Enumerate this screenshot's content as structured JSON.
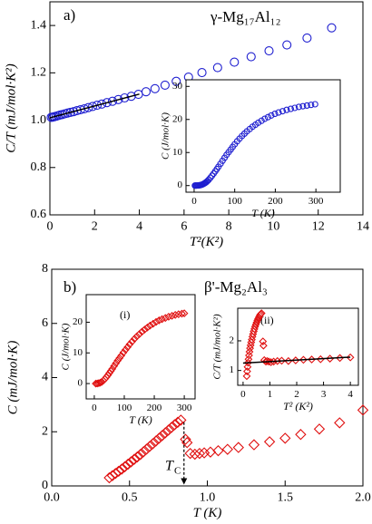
{
  "chart_data": [
    {
      "type": "scatter",
      "label": "a)",
      "title": "γ-Mg₁₇Al₁₂",
      "xlabel": "T²(K²)",
      "ylabel": "C/T (mJ/mol·K²)",
      "xlim": [
        0,
        14
      ],
      "ylim": [
        0.6,
        1.5
      ],
      "xticks": [
        0,
        2,
        4,
        6,
        8,
        10,
        12,
        14
      ],
      "yticks": [
        0.6,
        0.8,
        {
          "value": 1,
          "label": "1.0"
        },
        1.2,
        1.4
      ],
      "series": [
        {
          "color": "#1f1fd0",
          "marker": "circle",
          "x": [
            0.06,
            0.12,
            0.2,
            0.28,
            0.37,
            0.46,
            0.56,
            0.67,
            0.79,
            0.92,
            1.06,
            1.21,
            1.37,
            1.54,
            1.72,
            1.91,
            2.11,
            2.32,
            2.55,
            2.8,
            3.06,
            3.34,
            3.64,
            3.96,
            4.3,
            4.7,
            5.15,
            5.65,
            6.2,
            6.8,
            7.5,
            8.25,
            9.0,
            9.8,
            10.6,
            11.5,
            12.6
          ],
          "values": [
            1.012,
            1.013,
            1.015,
            1.017,
            1.019,
            1.022,
            1.024,
            1.027,
            1.03,
            1.033,
            1.036,
            1.04,
            1.044,
            1.048,
            1.053,
            1.058,
            1.063,
            1.068,
            1.074,
            1.08,
            1.087,
            1.094,
            1.101,
            1.109,
            1.12,
            1.133,
            1.148,
            1.164,
            1.182,
            1.201,
            1.222,
            1.245,
            1.268,
            1.293,
            1.318,
            1.347,
            1.39
          ]
        },
        {
          "color": "#000000",
          "marker": "line",
          "x": [
            0,
            4
          ],
          "values": [
            1.01,
            1.11
          ]
        }
      ]
    },
    {
      "type": "scatter",
      "xlabel": "T (K)",
      "ylabel": "C (J/mol·K)",
      "xlim": [
        -20,
        360
      ],
      "ylim": [
        -2,
        32
      ],
      "xticks": [
        0,
        100,
        200,
        300
      ],
      "yticks": [
        0,
        10,
        20,
        30
      ],
      "series": [
        {
          "color": "#1f1fd0",
          "marker": "circle",
          "x": [
            2,
            4,
            6,
            8,
            10,
            12,
            14,
            16,
            18,
            20,
            22,
            24,
            26,
            28,
            30,
            33,
            36,
            40,
            44,
            48,
            52,
            56,
            60,
            65,
            70,
            75,
            80,
            85,
            90,
            95,
            100,
            106,
            112,
            118,
            124,
            130,
            137,
            144,
            151,
            158,
            166,
            174,
            182,
            190,
            199,
            208,
            218,
            228,
            238,
            248,
            258,
            268,
            278,
            288,
            298
          ],
          "values": [
            0,
            0,
            0.01,
            0.02,
            0.04,
            0.07,
            0.11,
            0.16,
            0.23,
            0.32,
            0.43,
            0.56,
            0.71,
            0.88,
            1.07,
            1.4,
            1.78,
            2.35,
            2.97,
            3.62,
            4.3,
            5.0,
            5.7,
            6.6,
            7.5,
            8.4,
            9.3,
            10.1,
            10.9,
            11.7,
            12.5,
            13.4,
            14.2,
            15.0,
            15.7,
            16.4,
            17.1,
            17.8,
            18.4,
            19.0,
            19.6,
            20.2,
            20.7,
            21.2,
            21.7,
            22.1,
            22.5,
            22.9,
            23.2,
            23.5,
            23.8,
            24.0,
            24.2,
            24.4,
            24.6
          ]
        }
      ]
    },
    {
      "type": "scatter",
      "label": "b)",
      "title": "β'-Mg₂Al₃",
      "xlabel": "T (K)",
      "ylabel": "C (mJ/mol·K)",
      "xlim": [
        0,
        2
      ],
      "ylim": [
        0,
        8
      ],
      "xticks": [
        {
          "value": 0,
          "label": "0.0"
        },
        0.5,
        {
          "value": 1,
          "label": "1.0"
        },
        1.5,
        {
          "value": 2,
          "label": "2.0"
        }
      ],
      "yticks": [
        0,
        2,
        4,
        6,
        8
      ],
      "annotation": [
        "T",
        "C"
      ],
      "arrow": {
        "x": 0.85,
        "y": [
          2.35,
          0.05
        ]
      },
      "series": [
        {
          "color": "#e01010",
          "marker": "diamond",
          "x": [
            0.37,
            0.39,
            0.41,
            0.43,
            0.45,
            0.47,
            0.49,
            0.51,
            0.53,
            0.55,
            0.57,
            0.59,
            0.61,
            0.63,
            0.65,
            0.67,
            0.69,
            0.71,
            0.73,
            0.75,
            0.77,
            0.79,
            0.81,
            0.83,
            0.86,
            0.87,
            0.89,
            0.92,
            0.95,
            0.98,
            1.02,
            1.07,
            1.13,
            1.2,
            1.3,
            1.4,
            1.5,
            1.6,
            1.72,
            1.85,
            2.0
          ],
          "values": [
            0.3,
            0.38,
            0.46,
            0.54,
            0.62,
            0.71,
            0.8,
            0.89,
            0.98,
            1.07,
            1.16,
            1.26,
            1.36,
            1.46,
            1.56,
            1.66,
            1.76,
            1.86,
            1.96,
            2.06,
            2.16,
            2.26,
            2.35,
            2.43,
            1.72,
            1.6,
            1.2,
            1.17,
            1.2,
            1.22,
            1.25,
            1.3,
            1.35,
            1.42,
            1.52,
            1.63,
            1.76,
            1.9,
            2.1,
            2.33,
            2.8
          ]
        }
      ]
    },
    {
      "type": "scatter",
      "label": "(i)",
      "xlabel": "T (K)",
      "ylabel": "C (J/mol·K)",
      "xlim": [
        -27,
        336
      ],
      "ylim": [
        -5,
        29
      ],
      "xticks": [
        0,
        100,
        200,
        300
      ],
      "yticks": [
        0,
        10,
        20
      ],
      "series": [
        {
          "color": "#e01010",
          "marker": "diamond",
          "x": [
            5,
            10,
            15,
            20,
            25,
            30,
            35,
            40,
            45,
            50,
            55,
            60,
            66,
            72,
            78,
            84,
            90,
            97,
            104,
            111,
            118,
            126,
            134,
            142,
            150,
            159,
            168,
            177,
            186,
            196,
            206,
            216,
            226,
            237,
            248,
            259,
            270,
            281,
            292,
            300
          ],
          "values": [
            0,
            0.03,
            0.12,
            0.28,
            0.55,
            0.95,
            1.45,
            2.05,
            2.7,
            3.4,
            4.1,
            4.8,
            5.7,
            6.6,
            7.5,
            8.3,
            9.1,
            10.1,
            11.0,
            11.9,
            12.8,
            13.7,
            14.6,
            15.4,
            16.1,
            16.9,
            17.6,
            18.3,
            18.9,
            19.5,
            20.1,
            20.6,
            21.0,
            21.4,
            21.8,
            22.1,
            22.4,
            22.6,
            22.8,
            22.9
          ]
        }
      ]
    },
    {
      "type": "scatter",
      "label": "(ii)",
      "xlabel": "T² (K²)",
      "ylabel": "C/T (mJ/mol·K²)",
      "xlim": [
        -0.2,
        4.3
      ],
      "ylim": [
        0.5,
        3.1
      ],
      "xticks": [
        0,
        1,
        2,
        3,
        4
      ],
      "yticks": [
        1,
        2
      ],
      "series": [
        {
          "color": "#e01010",
          "marker": "diamond",
          "x": [
            0.137,
            0.152,
            0.168,
            0.185,
            0.203,
            0.221,
            0.24,
            0.26,
            0.281,
            0.303,
            0.325,
            0.348,
            0.372,
            0.397,
            0.423,
            0.449,
            0.476,
            0.504,
            0.533,
            0.563,
            0.593,
            0.624,
            0.656,
            0.689,
            0.74,
            0.76,
            0.79,
            0.85,
            0.9,
            0.96,
            1.04,
            1.14,
            1.28,
            1.44,
            1.69,
            1.96,
            2.25,
            2.56,
            2.89,
            3.24,
            3.61,
            4.0
          ],
          "values": [
            0.81,
            0.97,
            1.12,
            1.26,
            1.38,
            1.51,
            1.63,
            1.75,
            1.85,
            1.95,
            2.04,
            2.14,
            2.23,
            2.32,
            2.4,
            2.48,
            2.55,
            2.62,
            2.69,
            2.75,
            2.8,
            2.86,
            2.9,
            2.93,
            1.98,
            1.84,
            1.35,
            1.3,
            1.32,
            1.3,
            1.28,
            1.3,
            1.32,
            1.33,
            1.32,
            1.34,
            1.36,
            1.37,
            1.38,
            1.4,
            1.42,
            1.44
          ]
        },
        {
          "color": "#000000",
          "marker": "line",
          "x": [
            0,
            4
          ],
          "values": [
            1.25,
            1.45
          ]
        }
      ]
    }
  ]
}
